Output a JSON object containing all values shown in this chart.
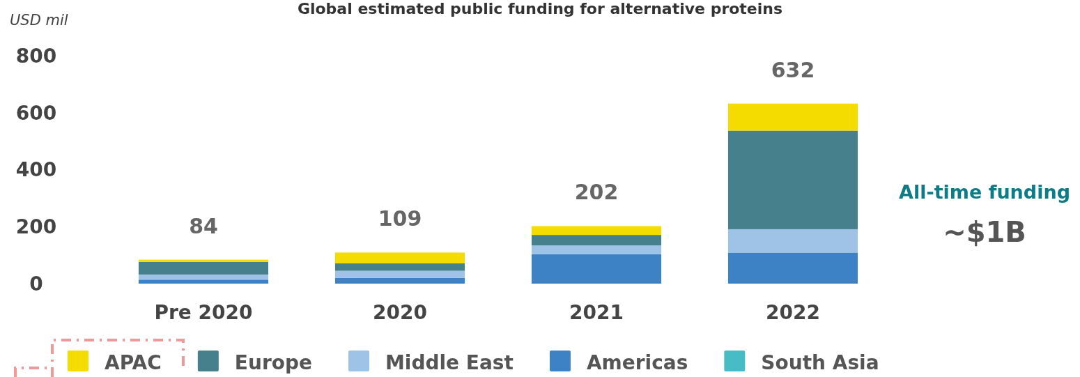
{
  "chart_data": {
    "type": "bar",
    "title": "Global estimated public funding for alternative proteins",
    "ylabel": "USD mil",
    "categories": [
      "Pre 2020",
      "2020",
      "2021",
      "2022"
    ],
    "stacked": true,
    "series": [
      {
        "name": "South Asia",
        "color": "#48bcc4",
        "values": [
          0,
          0,
          0,
          0
        ]
      },
      {
        "name": "Americas",
        "color": "#3d82c4",
        "values": [
          14,
          20,
          103,
          109
        ]
      },
      {
        "name": "Middle East",
        "color": "#9fc3e6",
        "values": [
          18,
          25,
          31,
          82
        ]
      },
      {
        "name": "Europe",
        "color": "#45808c",
        "values": [
          44,
          26,
          37,
          346
        ]
      },
      {
        "name": "APAC",
        "color": "#f5dc00",
        "values": [
          8,
          38,
          31,
          95
        ]
      }
    ],
    "totals": [
      "84",
      "109",
      "202",
      "632"
    ],
    "ylim": [
      0,
      800
    ],
    "yticks": [
      0,
      200,
      400,
      600,
      800
    ],
    "grid": false,
    "legend": "bottom",
    "annotations": [
      "All-time funding",
      "~$1B"
    ]
  }
}
